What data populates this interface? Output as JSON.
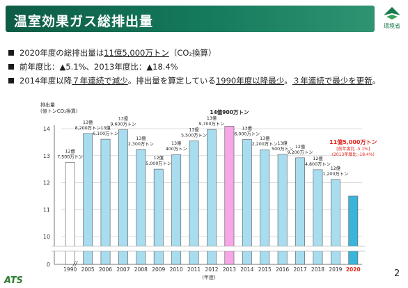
{
  "header": {
    "title": "温室効果ガス総排出量",
    "ministry": "環境省"
  },
  "bullets": [
    {
      "segments": [
        {
          "t": "2020年度の総排出量は",
          "u": false
        },
        {
          "t": "11億5,000万トン",
          "u": true
        },
        {
          "t": "（CO₂換算）",
          "u": false
        }
      ]
    },
    {
      "segments": [
        {
          "t": "前年度比：▲5.1%、2013年度比：▲18.4%",
          "u": false
        }
      ]
    },
    {
      "segments": [
        {
          "t": "2014年度以降",
          "u": false
        },
        {
          "t": "７年連続で減少",
          "u": true
        },
        {
          "t": "。排出量を算定している",
          "u": false
        },
        {
          "t": "1990年度以降最少",
          "u": true
        },
        {
          "t": "。",
          "u": false
        },
        {
          "t": "３年連続で最少を更新",
          "u": true
        },
        {
          "t": "。",
          "u": false
        }
      ]
    }
  ],
  "chart_data": {
    "type": "bar",
    "ylabel": "排出量\n(億トンCO₂換算)",
    "xlabel": "(年度)",
    "ylim": [
      0,
      14.5
    ],
    "yaxis_break": true,
    "yticks": [
      0,
      10,
      11,
      12,
      13,
      14
    ],
    "categories": [
      "1990",
      "2005",
      "2006",
      "2007",
      "2008",
      "2009",
      "2010",
      "2011",
      "2012",
      "2013",
      "2014",
      "2015",
      "2016",
      "2017",
      "2018",
      "2019",
      "2020"
    ],
    "values": [
      12.75,
      13.82,
      13.61,
      13.96,
      13.23,
      12.5,
      13.04,
      13.55,
      13.97,
      14.09,
      13.6,
      13.22,
      13.05,
      12.92,
      12.48,
      12.12,
      11.5
    ],
    "labels": [
      "12億\n7,500万トン",
      "13億\n8,200万トン",
      "13億\n6,100万トン",
      "13億\n9,600万トン",
      "13億\n2,300万トン",
      "12億\n5,000万トン",
      "13億\n400万トン",
      "13億\n5,500万トン",
      "13億\n9,700万トン",
      "14億900万トン",
      "13億\n6,000万トン",
      "13億\n2,200万トン",
      "13億\n500万トン",
      "12億\n9,200万トン",
      "12億\n4,800万トン",
      "12億\n1,200万トン",
      "11億5,000万トン"
    ],
    "note_2020": [
      "[前年度比 -5.1%]",
      "(2013年度比 -18.4%)"
    ],
    "colors": {
      "1990": "#ffffff",
      "default": "#a8dcef",
      "2013": "#f7a6e6",
      "2020": "#3bb4dc"
    }
  },
  "footer": {
    "page": "2",
    "logo": "ATS"
  }
}
